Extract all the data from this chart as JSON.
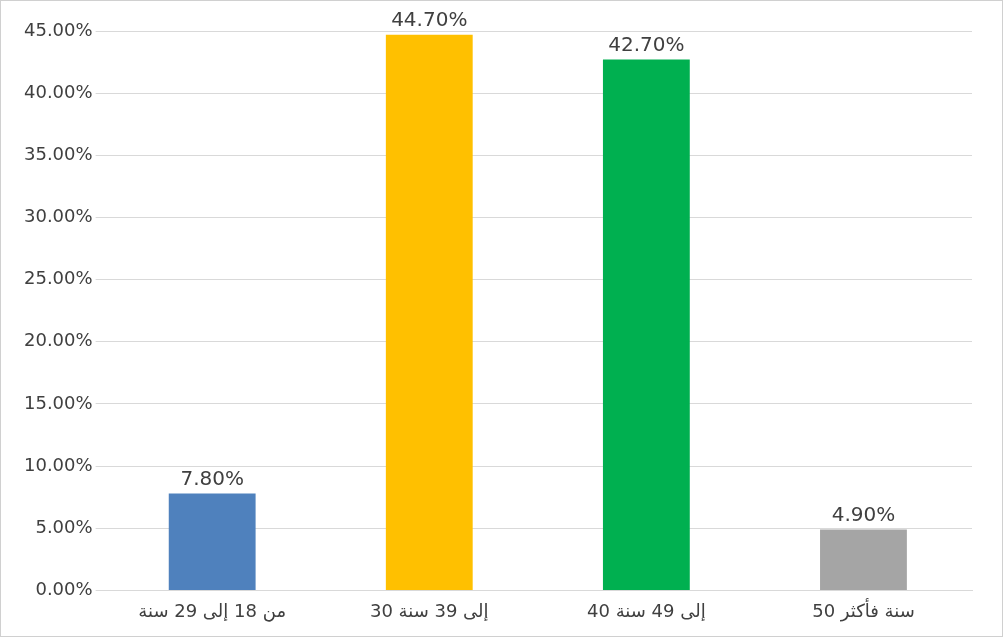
{
  "chart_data": {
    "type": "bar",
    "categories": [
      "من 18 إلى 29 سنة",
      "30 إلى 39 سنة",
      "40 إلى 49 سنة",
      "50 سنة فأكثر"
    ],
    "values": [
      7.8,
      44.7,
      42.7,
      4.9
    ],
    "colors": [
      "#4f81bd",
      "#ffc000",
      "#00b050",
      "#a5a5a5"
    ],
    "value_labels": [
      "7.80%",
      "44.70%",
      "42.70%",
      "4.90%"
    ],
    "ylim": [
      0,
      45
    ],
    "yticks": [
      {
        "value": 0,
        "label": "0.00%"
      },
      {
        "value": 5,
        "label": "5.00%"
      },
      {
        "value": 10,
        "label": "10.00%"
      },
      {
        "value": 15,
        "label": "15.00%"
      },
      {
        "value": 20,
        "label": "20.00%"
      },
      {
        "value": 25,
        "label": "25.00%"
      },
      {
        "value": 30,
        "label": "30.00%"
      },
      {
        "value": 35,
        "label": "35.00%"
      },
      {
        "value": 40,
        "label": "40.00%"
      },
      {
        "value": 45,
        "label": "45.00%"
      }
    ],
    "grid": "y",
    "legend": false
  }
}
